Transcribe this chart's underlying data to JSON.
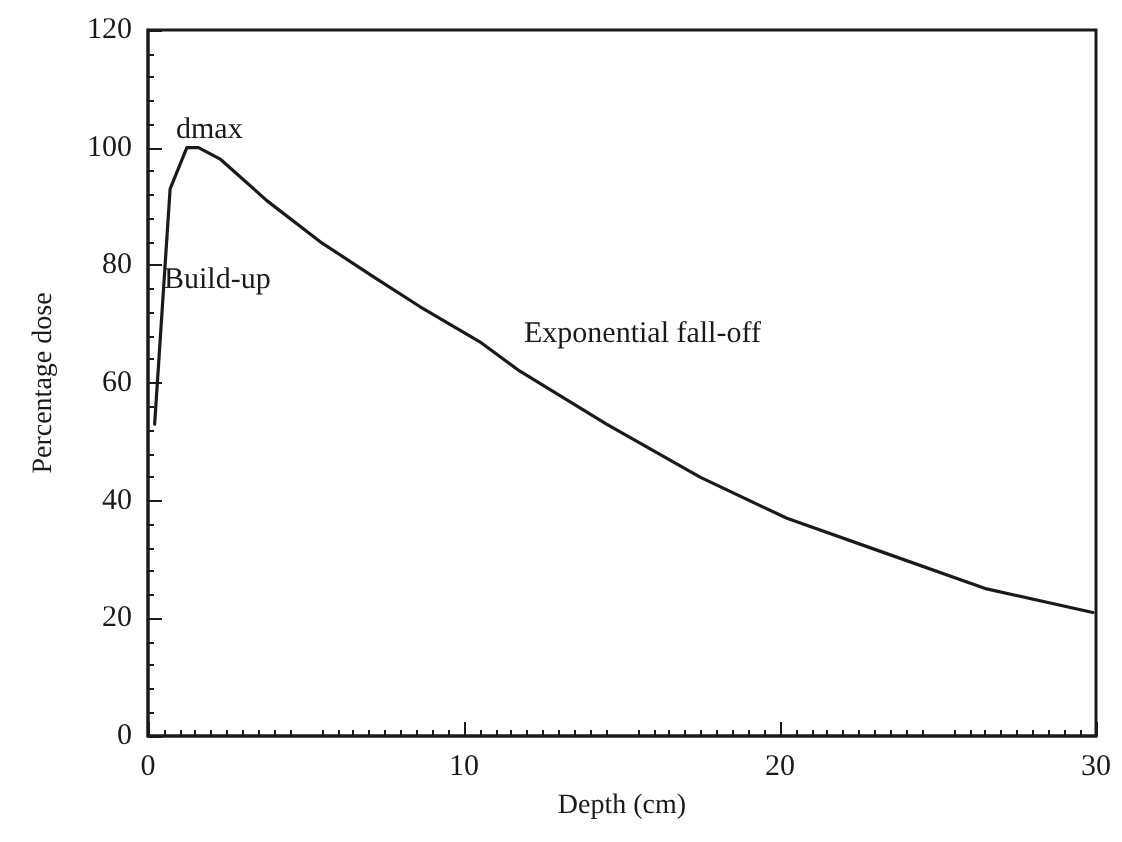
{
  "chart_data": {
    "type": "line",
    "xlabel": "Depth (cm)",
    "ylabel": "Percentage dose",
    "x": [
      0.21,
      0.7,
      1.23,
      1.6,
      2.3,
      3.76,
      5.45,
      7.15,
      8.6,
      10.5,
      11.77,
      14.51,
      17.47,
      20.22,
      23.38,
      26.54,
      29.9
    ],
    "values": [
      53,
      93,
      100,
      100,
      98,
      91,
      84,
      78,
      73,
      67,
      62,
      53,
      44,
      37,
      31,
      25,
      21
    ],
    "color": "#1a1a1a",
    "marker": "none",
    "line_style": "solid",
    "grid": false,
    "xlim": [
      0,
      30
    ],
    "xticks": [
      0,
      10,
      20,
      30
    ],
    "ylim": [
      0,
      120
    ],
    "yticks": [
      0,
      20,
      40,
      60,
      80,
      100,
      120
    ],
    "annotations": [
      "dmax",
      "Build-up",
      "Exponential fall-off"
    ]
  }
}
